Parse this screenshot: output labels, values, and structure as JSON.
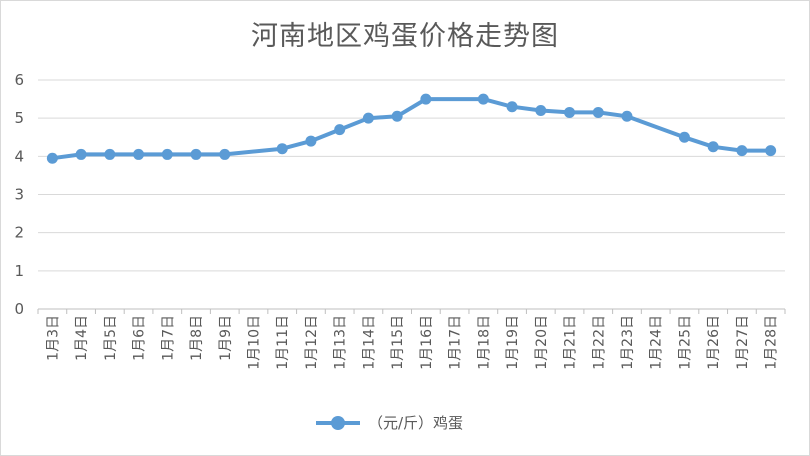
{
  "chart_data": {
    "type": "line",
    "title": "河南地区鸡蛋价格走势图",
    "categories": [
      "1月3日",
      "1月4日",
      "1月5日",
      "1月6日",
      "1月7日",
      "1月8日",
      "1月9日",
      "1月10日",
      "1月11日",
      "1月12日",
      "1月13日",
      "1月14日",
      "1月15日",
      "1月16日",
      "1月17日",
      "1月18日",
      "1月19日",
      "1月20日",
      "1月21日",
      "1月22日",
      "1月23日",
      "1月24日",
      "1月25日",
      "1月26日",
      "1月27日",
      "1月28日"
    ],
    "series": [
      {
        "name": "（元/斤）鸡蛋",
        "color": "#5b9bd5",
        "values": [
          3.95,
          4.05,
          4.05,
          4.05,
          4.05,
          4.05,
          4.05,
          null,
          4.2,
          4.4,
          4.7,
          5.0,
          5.05,
          5.5,
          null,
          5.5,
          5.3,
          5.2,
          5.15,
          5.15,
          5.05,
          null,
          4.5,
          4.25,
          4.15,
          4.15
        ]
      }
    ],
    "yticks": [
      "0",
      "1",
      "2",
      "3",
      "4",
      "5",
      "6"
    ],
    "ylim": [
      0,
      6
    ],
    "grid": true,
    "legend": "bottom"
  }
}
